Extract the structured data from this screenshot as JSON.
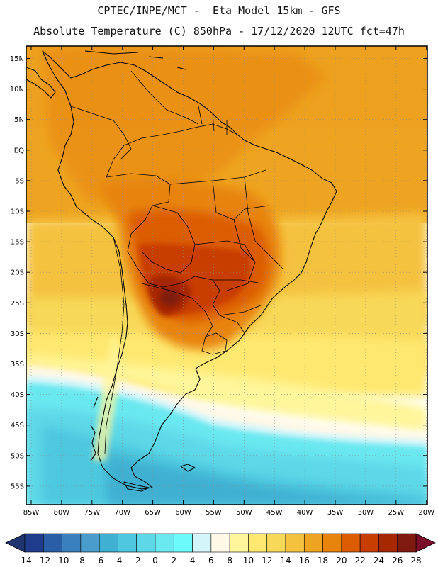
{
  "header": {
    "line1": "CPTEC/INPE/MCT -  Eta Model 15km - GFS",
    "line2": "Absolute Temperature (C) 850hPa - 17/12/2020 12UTC fct=47h"
  },
  "map": {
    "lat_labels": [
      "15N",
      "10N",
      "5N",
      "EQ",
      "5S",
      "10S",
      "15S",
      "20S",
      "25S",
      "30S",
      "35S",
      "40S",
      "45S",
      "50S",
      "55S"
    ],
    "lon_labels": [
      "85W",
      "80W",
      "75W",
      "70W",
      "65W",
      "60W",
      "55W",
      "50W",
      "45W",
      "40W",
      "35W",
      "30W",
      "25W",
      "20W"
    ]
  },
  "colorbar": {
    "labels": [
      "-14",
      "-12",
      "-10",
      "-8",
      "-6",
      "-4",
      "-2",
      "0",
      "2",
      "4",
      "6",
      "8",
      "10",
      "12",
      "14",
      "16",
      "18",
      "20",
      "22",
      "24",
      "26",
      "28"
    ],
    "colors": [
      "#1f3b8c",
      "#2a5fa8",
      "#3a80be",
      "#4a9ccc",
      "#3fb0d2",
      "#4ec8df",
      "#5dd8e8",
      "#6ae8f0",
      "#6cfafa",
      "#d4f6fb",
      "#fff8e6",
      "#fff59a",
      "#ffe870",
      "#f8d858",
      "#f5c240",
      "#eea420",
      "#e8840c",
      "#dc5c00",
      "#c83e00",
      "#a62800",
      "#7e1a10"
    ],
    "under_color": "#203470",
    "over_color": "#7a0c2a"
  }
}
